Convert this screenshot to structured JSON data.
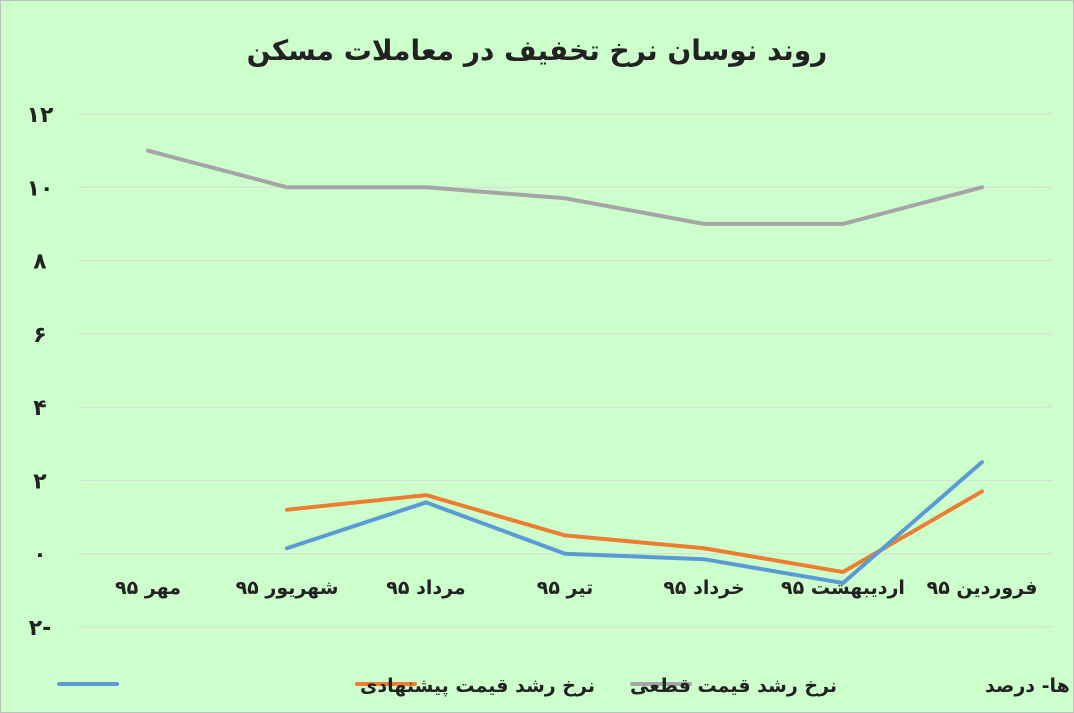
{
  "chart_data": {
    "type": "line",
    "title": "روند نوسان نرخ تخفیف در معاملات مسکن",
    "xlabel": "",
    "ylabel": "",
    "categories": [
      "فروردین ۹۵",
      "اردیبهشت ۹۵",
      "خرداد ۹۵",
      "تیر ۹۵",
      "مرداد ۹۵",
      "شهریور ۹۵",
      "مهر ۹۵"
    ],
    "category_order": "right-to-left",
    "y_ticks": [
      "۱۲",
      "۱۰",
      "۸",
      "۶",
      "۴",
      "۲",
      "۰",
      "۲-"
    ],
    "ylim": [
      -2,
      12
    ],
    "grid": true,
    "legend_position": "bottom",
    "series": [
      {
        "name": "نرخ تخفیف فروشنده ها- درصد",
        "color": "#a5a5a5",
        "values": [
          10,
          9,
          9,
          9.7,
          10,
          10,
          11
        ]
      },
      {
        "name": "نرخ رشد قیمت قطعی",
        "color": "#ed7d31",
        "values": [
          1.7,
          -0.5,
          0.15,
          0.5,
          1.6,
          1.2,
          null
        ]
      },
      {
        "name": "نرخ رشد قیمت پیشنهادی",
        "color": "#5b9bd5",
        "values": [
          2.5,
          -0.8,
          -0.15,
          0,
          1.4,
          0.15,
          null
        ]
      }
    ]
  }
}
